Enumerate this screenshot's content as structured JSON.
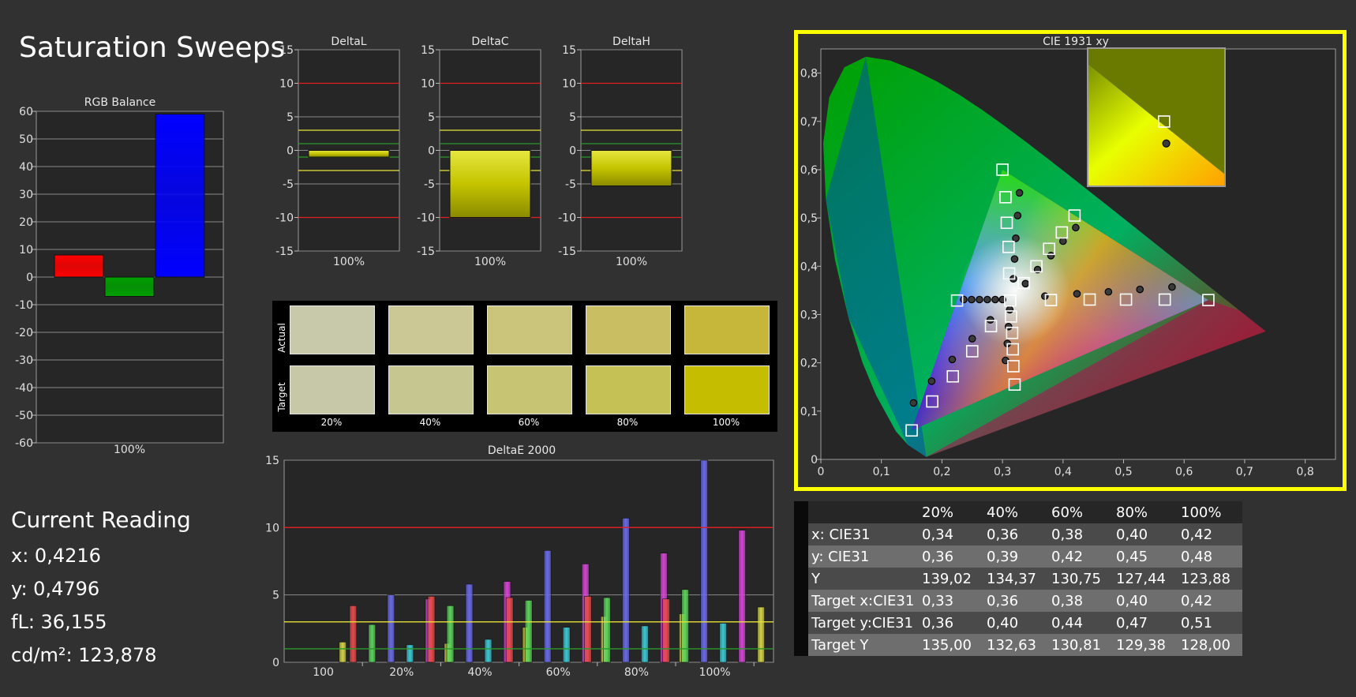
{
  "page_title": "Saturation Sweeps",
  "colors": {
    "background": "#313131",
    "plot_bg": "#262626",
    "grid": "#8a8a8a",
    "red_line": "#e02020",
    "yellow_line": "#e8e23a",
    "green_line": "#2a9a2a",
    "highlight_border": "#ffff00"
  },
  "rgb_balance": {
    "title": "RGB Balance",
    "category": "100%",
    "ylim": [
      -60,
      60
    ],
    "yticks": [
      "60",
      "50",
      "40",
      "30",
      "20",
      "10",
      "0",
      "-10",
      "-20",
      "-30",
      "-40",
      "-50",
      "-60"
    ]
  },
  "delta_charts": [
    {
      "title": "DeltaL",
      "category": "100%",
      "value": -1.0
    },
    {
      "title": "DeltaC",
      "category": "100%",
      "value": -10.0
    },
    {
      "title": "DeltaH",
      "category": "100%",
      "value": -5.3
    }
  ],
  "delta_yticks": [
    "15",
    "10",
    "5",
    "0",
    "-5",
    "-10",
    "-15"
  ],
  "swatches": {
    "actual_label": "Actual",
    "target_label": "Target",
    "labels": [
      "20%",
      "40%",
      "60%",
      "80%",
      "100%"
    ],
    "actual_colors": [
      "#c8c8aa",
      "#cbc896",
      "#cbc57c",
      "#c9bf62",
      "#c6b63a"
    ],
    "target_colors": [
      "#c6c8a8",
      "#c6c690",
      "#c7c474",
      "#c5c154",
      "#c4bd00"
    ]
  },
  "deltae": {
    "title": "DeltaE 2000",
    "yticks": [
      "15",
      "10",
      "5",
      "0"
    ],
    "categories": [
      "100",
      "20%",
      "40%",
      "60%",
      "80%",
      "100%"
    ]
  },
  "cie": {
    "title": "CIE 1931 xy",
    "xticks": [
      "0",
      "0,1",
      "0,2",
      "0,3",
      "0,4",
      "0,5",
      "0,6",
      "0,7",
      "0,8"
    ],
    "yticks": [
      "0,8",
      "0,7",
      "0,6",
      "0,5",
      "0,4",
      "0,3",
      "0,2",
      "0,1",
      "0"
    ]
  },
  "current_reading": {
    "heading": "Current Reading",
    "x": "x: 0,4216",
    "y": "y: 0,4796",
    "fl": "fL: 36,155",
    "cdm2": "cd/m²: 123,878"
  },
  "table": {
    "headers": [
      "",
      "20%",
      "40%",
      "60%",
      "80%",
      "100%"
    ],
    "rows": [
      [
        "x: CIE31",
        "0,34",
        "0,36",
        "0,38",
        "0,40",
        "0,42"
      ],
      [
        "y: CIE31",
        "0,36",
        "0,39",
        "0,42",
        "0,45",
        "0,48"
      ],
      [
        "Y",
        "139,02",
        "134,37",
        "130,75",
        "127,44",
        "123,88"
      ],
      [
        "Target x:CIE31",
        "0,33",
        "0,36",
        "0,38",
        "0,40",
        "0,42"
      ],
      [
        "Target y:CIE31",
        "0,36",
        "0,40",
        "0,44",
        "0,47",
        "0,51"
      ],
      [
        "Target Y",
        "135,00",
        "132,63",
        "130,81",
        "129,38",
        "128,00"
      ]
    ]
  },
  "chart_data": [
    {
      "type": "bar",
      "title": "RGB Balance",
      "categories": [
        "100%"
      ],
      "series": [
        {
          "name": "Red",
          "values": [
            8
          ],
          "color": "#ff0000"
        },
        {
          "name": "Green",
          "values": [
            -7
          ],
          "color": "#00a000"
        },
        {
          "name": "Blue",
          "values": [
            59
          ],
          "color": "#0000ff"
        }
      ],
      "ylim": [
        -60,
        60
      ]
    },
    {
      "type": "bar",
      "title": "DeltaL",
      "categories": [
        "100%"
      ],
      "values": [
        -1.0
      ],
      "ylim": [
        -15,
        15
      ]
    },
    {
      "type": "bar",
      "title": "DeltaC",
      "categories": [
        "100%"
      ],
      "values": [
        -10.0
      ],
      "ylim": [
        -15,
        15
      ]
    },
    {
      "type": "bar",
      "title": "DeltaH",
      "categories": [
        "100%"
      ],
      "values": [
        -5.3
      ],
      "ylim": [
        -15,
        15
      ]
    },
    {
      "type": "bar",
      "title": "DeltaE 2000",
      "categories": [
        "100",
        "20%",
        "40%",
        "60%",
        "80%",
        "100%"
      ],
      "ylim": [
        0,
        15
      ],
      "reference_lines": [
        10,
        3,
        1
      ],
      "series": [
        {
          "name": "Red",
          "color": "#e64a4a",
          "values": [
            null,
            4.2,
            4.9,
            4.8,
            4.9,
            4.7
          ]
        },
        {
          "name": "Green",
          "color": "#5ad25a",
          "values": [
            null,
            2.8,
            4.2,
            4.6,
            4.8,
            5.4
          ]
        },
        {
          "name": "Blue",
          "color": "#6a6ae8",
          "values": [
            null,
            5.0,
            5.8,
            8.3,
            10.7,
            15.0
          ]
        },
        {
          "name": "Cyan",
          "color": "#3cc8d2",
          "values": [
            null,
            1.3,
            1.7,
            2.6,
            2.7,
            2.9
          ]
        },
        {
          "name": "Magenta",
          "color": "#d246d2",
          "values": [
            null,
            4.7,
            6.0,
            7.3,
            8.1,
            9.8
          ]
        },
        {
          "name": "Yellow",
          "color": "#d2d246",
          "values": [
            1.5,
            1.4,
            2.6,
            3.4,
            3.6,
            4.1
          ]
        }
      ]
    },
    {
      "type": "scatter",
      "title": "CIE 1931 xy",
      "xlim": [
        0,
        0.85
      ],
      "ylim": [
        0,
        0.85
      ],
      "gamut_triangle": [
        [
          0.64,
          0.33
        ],
        [
          0.3,
          0.6
        ],
        [
          0.15,
          0.06
        ]
      ],
      "targets": [
        [
          0.3127,
          0.329
        ],
        [
          0.64,
          0.33
        ],
        [
          0.568,
          0.331
        ],
        [
          0.504,
          0.331
        ],
        [
          0.444,
          0.331
        ],
        [
          0.38,
          0.33
        ],
        [
          0.3,
          0.6
        ],
        [
          0.305,
          0.543
        ],
        [
          0.307,
          0.49
        ],
        [
          0.31,
          0.44
        ],
        [
          0.311,
          0.385
        ],
        [
          0.15,
          0.06
        ],
        [
          0.184,
          0.12
        ],
        [
          0.218,
          0.172
        ],
        [
          0.25,
          0.224
        ],
        [
          0.281,
          0.276
        ],
        [
          0.225,
          0.329
        ],
        [
          0.32,
          0.155
        ],
        [
          0.318,
          0.193
        ],
        [
          0.317,
          0.228
        ],
        [
          0.316,
          0.262
        ],
        [
          0.314,
          0.296
        ],
        [
          0.419,
          0.505
        ],
        [
          0.398,
          0.47
        ],
        [
          0.377,
          0.436
        ],
        [
          0.356,
          0.4
        ],
        [
          0.335,
          0.365
        ]
      ],
      "measured": [
        [
          0.58,
          0.357
        ],
        [
          0.527,
          0.352
        ],
        [
          0.475,
          0.347
        ],
        [
          0.423,
          0.343
        ],
        [
          0.37,
          0.338
        ],
        [
          0.328,
          0.552
        ],
        [
          0.325,
          0.505
        ],
        [
          0.322,
          0.458
        ],
        [
          0.32,
          0.415
        ],
        [
          0.318,
          0.374
        ],
        [
          0.153,
          0.117
        ],
        [
          0.183,
          0.162
        ],
        [
          0.217,
          0.207
        ],
        [
          0.25,
          0.25
        ],
        [
          0.28,
          0.289
        ],
        [
          0.236,
          0.331
        ],
        [
          0.249,
          0.331
        ],
        [
          0.262,
          0.331
        ],
        [
          0.275,
          0.331
        ],
        [
          0.288,
          0.331
        ],
        [
          0.3,
          0.331
        ],
        [
          0.305,
          0.205
        ],
        [
          0.308,
          0.24
        ],
        [
          0.31,
          0.275
        ],
        [
          0.312,
          0.31
        ],
        [
          0.421,
          0.48
        ],
        [
          0.4,
          0.452
        ],
        [
          0.38,
          0.422
        ],
        [
          0.358,
          0.393
        ],
        [
          0.338,
          0.364
        ]
      ],
      "inset": {
        "target": [
          0.419,
          0.505
        ],
        "measured": [
          0.4216,
          0.4796
        ]
      }
    }
  ]
}
